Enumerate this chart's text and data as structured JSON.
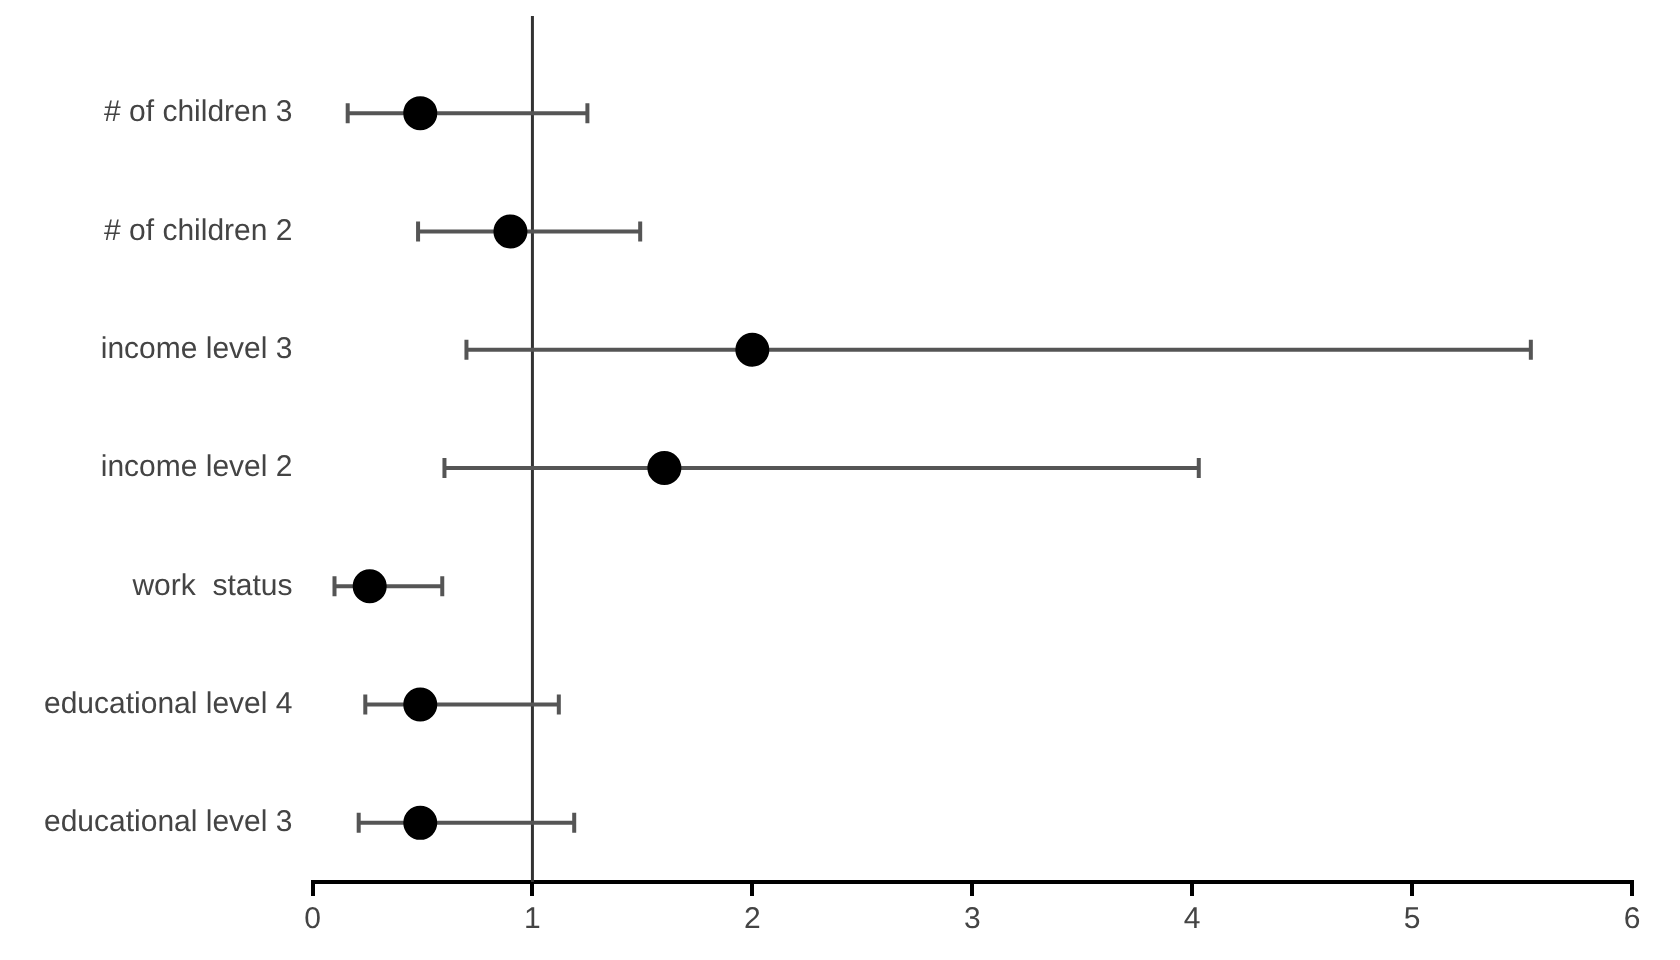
{
  "chart_data": {
    "type": "scatter",
    "orientation": "horizontal",
    "categories": [
      "# of children 3",
      "# of children 2",
      "income level 3",
      "income level 2",
      "work  status",
      "educational level 4",
      "educational level 3"
    ],
    "values": [
      0.49,
      0.9,
      2.0,
      1.6,
      0.26,
      0.49,
      0.49
    ],
    "errors": [
      [
        0.16,
        1.25
      ],
      [
        0.48,
        1.49
      ],
      [
        0.7,
        5.54
      ],
      [
        0.6,
        4.03
      ],
      [
        0.1,
        0.59
      ],
      [
        0.24,
        1.12
      ],
      [
        0.21,
        1.19
      ]
    ],
    "color": "#000000",
    "marker": "circle",
    "xlim": [
      0,
      6
    ],
    "xticks": [
      0,
      1,
      2,
      3,
      4,
      5,
      6
    ],
    "ref_lines": [
      {
        "axis": "x",
        "value": 1,
        "color": "#333333"
      }
    ],
    "grid": false,
    "legend": false
  }
}
